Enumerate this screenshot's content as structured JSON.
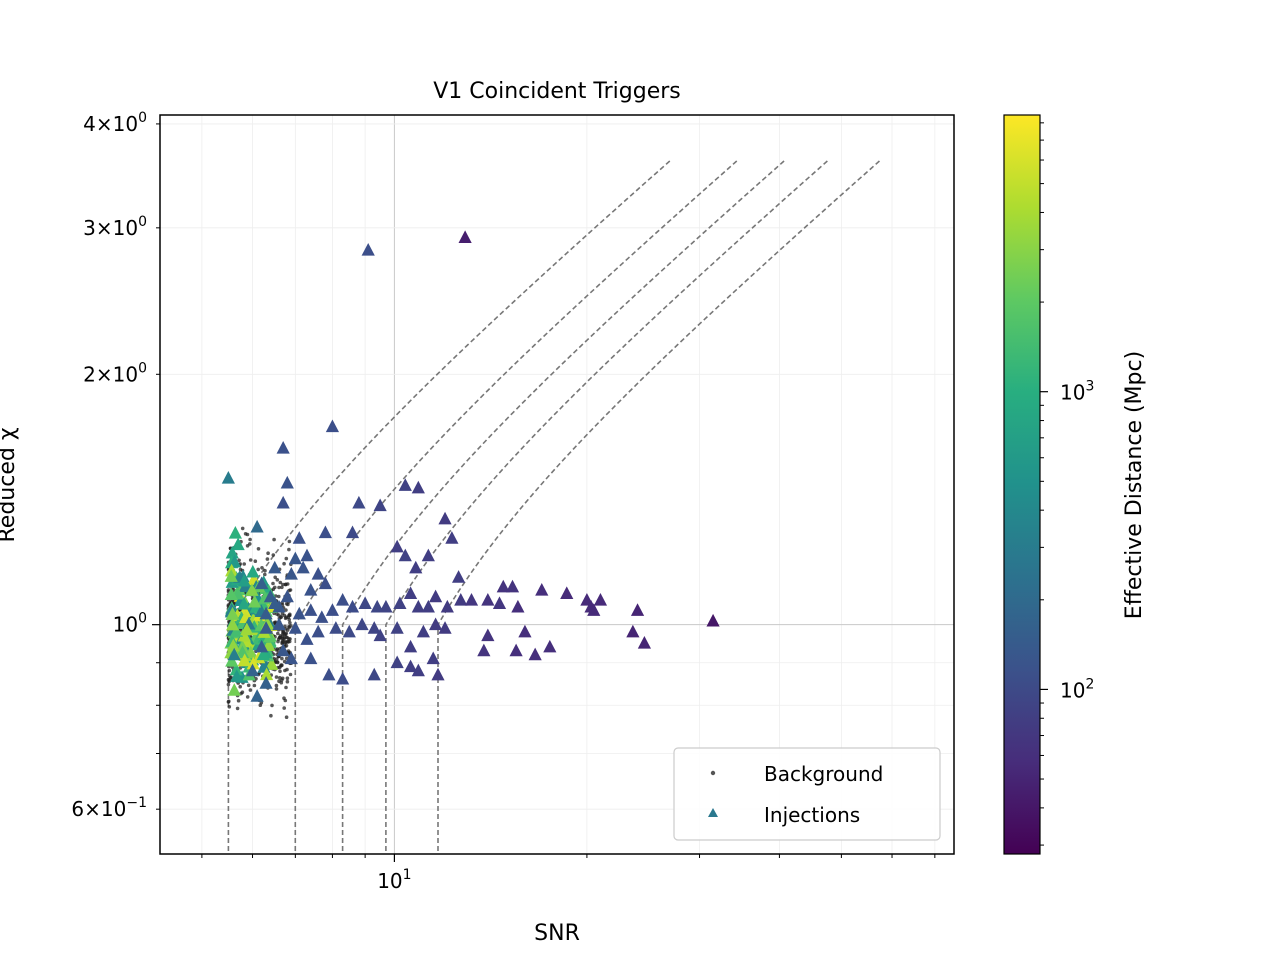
{
  "chart_data": {
    "type": "scatter",
    "title": "V1 Coincident Triggers",
    "xlabel": "SNR",
    "ylabel": "Reduced χ",
    "xscale": "log",
    "yscale": "log",
    "xlim": [
      4.3,
      75
    ],
    "ylim": [
      0.53,
      4.1
    ],
    "x_ticks": [
      {
        "value": 10,
        "base": "10",
        "exp": "1"
      }
    ],
    "y_ticks": [
      {
        "value": 4,
        "mant": "4",
        "exp": "0"
      },
      {
        "value": 3,
        "mant": "3",
        "exp": "0"
      },
      {
        "value": 2,
        "mant": "2",
        "exp": "0"
      },
      {
        "value": 1,
        "base": "10",
        "exp": "0"
      },
      {
        "value": 0.6,
        "mant": "6",
        "exp": "−1"
      }
    ],
    "grid": true,
    "legend": {
      "location": "lower right",
      "entries": [
        {
          "label": "Background",
          "marker": "dot",
          "color": "#555555"
        },
        {
          "label": "Injections",
          "marker": "triangle",
          "color": "#2a788e"
        }
      ]
    },
    "colorbar": {
      "label": "Effective Distance (Mpc)",
      "scale": "log",
      "range": [
        28,
        8500
      ],
      "cmap": "viridis",
      "ticks": [
        {
          "value": 100,
          "base": "10",
          "exp": "2"
        },
        {
          "value": 1000,
          "base": "10",
          "exp": "3"
        }
      ]
    },
    "contours": {
      "style": "dashed",
      "color": "#777777",
      "snr_thresholds": [
        5.5,
        7.0,
        8.3,
        9.7,
        11.7
      ],
      "shape": "vertical below chi 1, rising with SNR above it"
    },
    "background_cluster": {
      "snr_range": [
        5.5,
        6.9
      ],
      "chi_range": [
        0.73,
        1.52
      ],
      "n": 650,
      "color": "#222222"
    },
    "injections": [
      [
        5.5,
        1.5,
        300
      ],
      [
        9.1,
        2.82,
        110
      ],
      [
        12.9,
        2.92,
        45
      ],
      [
        8.0,
        1.73,
        110
      ],
      [
        6.7,
        1.63,
        115
      ],
      [
        6.8,
        1.48,
        120
      ],
      [
        6.7,
        1.4,
        110
      ],
      [
        6.1,
        1.31,
        200
      ],
      [
        7.1,
        1.27,
        115
      ],
      [
        7.0,
        1.2,
        130
      ],
      [
        7.3,
        1.21,
        120
      ],
      [
        7.8,
        1.29,
        110
      ],
      [
        8.6,
        1.29,
        100
      ],
      [
        8.8,
        1.4,
        100
      ],
      [
        9.5,
        1.39,
        90
      ],
      [
        10.4,
        1.47,
        85
      ],
      [
        10.9,
        1.46,
        80
      ],
      [
        10.1,
        1.24,
        80
      ],
      [
        10.4,
        1.21,
        85
      ],
      [
        10.8,
        1.17,
        80
      ],
      [
        11.3,
        1.21,
        80
      ],
      [
        12.0,
        1.34,
        75
      ],
      [
        12.3,
        1.27,
        80
      ],
      [
        12.6,
        1.14,
        80
      ],
      [
        6.5,
        1.17,
        140
      ],
      [
        6.9,
        1.15,
        130
      ],
      [
        7.2,
        1.17,
        125
      ],
      [
        7.6,
        1.15,
        115
      ],
      [
        7.4,
        1.1,
        120
      ],
      [
        7.8,
        1.12,
        110
      ],
      [
        8.3,
        1.07,
        110
      ],
      [
        8.0,
        1.04,
        110
      ],
      [
        8.6,
        1.05,
        105
      ],
      [
        9.0,
        1.06,
        95
      ],
      [
        9.4,
        1.05,
        95
      ],
      [
        9.7,
        1.05,
        90
      ],
      [
        10.2,
        1.06,
        85
      ],
      [
        10.6,
        1.09,
        80
      ],
      [
        10.9,
        1.05,
        80
      ],
      [
        11.3,
        1.05,
        80
      ],
      [
        11.6,
        1.08,
        75
      ],
      [
        12.1,
        1.05,
        75
      ],
      [
        12.7,
        1.07,
        75
      ],
      [
        13.2,
        1.07,
        70
      ],
      [
        14.0,
        1.07,
        65
      ],
      [
        14.8,
        1.11,
        65
      ],
      [
        15.3,
        1.11,
        65
      ],
      [
        14.6,
        1.06,
        70
      ],
      [
        15.6,
        1.05,
        60
      ],
      [
        17.0,
        1.1,
        60
      ],
      [
        18.6,
        1.09,
        55
      ],
      [
        20.0,
        1.07,
        55
      ],
      [
        20.3,
        1.05,
        55
      ],
      [
        21.0,
        1.07,
        55
      ],
      [
        20.5,
        1.04,
        55
      ],
      [
        24.0,
        1.04,
        50
      ],
      [
        23.6,
        0.98,
        50
      ],
      [
        24.6,
        0.95,
        50
      ],
      [
        31.5,
        1.01,
        40
      ],
      [
        16.0,
        0.98,
        60
      ],
      [
        16.6,
        0.92,
        60
      ],
      [
        17.5,
        0.94,
        60
      ],
      [
        15.5,
        0.93,
        60
      ],
      [
        14.0,
        0.97,
        65
      ],
      [
        13.8,
        0.93,
        65
      ],
      [
        12.0,
        0.99,
        75
      ],
      [
        11.6,
        1.0,
        75
      ],
      [
        11.1,
        0.98,
        80
      ],
      [
        10.6,
        0.94,
        80
      ],
      [
        10.1,
        0.99,
        85
      ],
      [
        9.5,
        0.97,
        85
      ],
      [
        9.3,
        0.99,
        90
      ],
      [
        8.9,
        1.0,
        95
      ],
      [
        8.5,
        0.98,
        100
      ],
      [
        8.1,
        0.99,
        105
      ],
      [
        7.6,
        0.98,
        110
      ],
      [
        7.3,
        0.96,
        115
      ],
      [
        7.0,
        0.99,
        120
      ],
      [
        6.6,
        1.0,
        130
      ],
      [
        6.3,
        0.99,
        140
      ],
      [
        7.9,
        0.87,
        110
      ],
      [
        8.3,
        0.86,
        105
      ],
      [
        9.3,
        0.87,
        95
      ],
      [
        10.1,
        0.9,
        85
      ],
      [
        10.6,
        0.89,
        80
      ],
      [
        10.9,
        0.88,
        80
      ],
      [
        11.7,
        0.87,
        75
      ],
      [
        11.5,
        0.91,
        80
      ],
      [
        7.4,
        0.91,
        115
      ],
      [
        6.9,
        0.91,
        125
      ],
      [
        6.7,
        0.93,
        130
      ],
      [
        6.2,
        0.94,
        150
      ],
      [
        6.1,
        0.82,
        170
      ],
      [
        6.3,
        0.85,
        160
      ],
      [
        6.0,
        0.88,
        170
      ],
      [
        6.6,
        1.05,
        135
      ],
      [
        6.8,
        1.08,
        125
      ],
      [
        7.1,
        1.03,
        120
      ],
      [
        7.4,
        1.04,
        115
      ],
      [
        7.7,
        1.02,
        112
      ],
      [
        6.4,
        1.08,
        150
      ],
      [
        6.2,
        1.12,
        160
      ],
      [
        6.5,
        1.06,
        145
      ],
      [
        6.3,
        1.03,
        150
      ]
    ]
  }
}
